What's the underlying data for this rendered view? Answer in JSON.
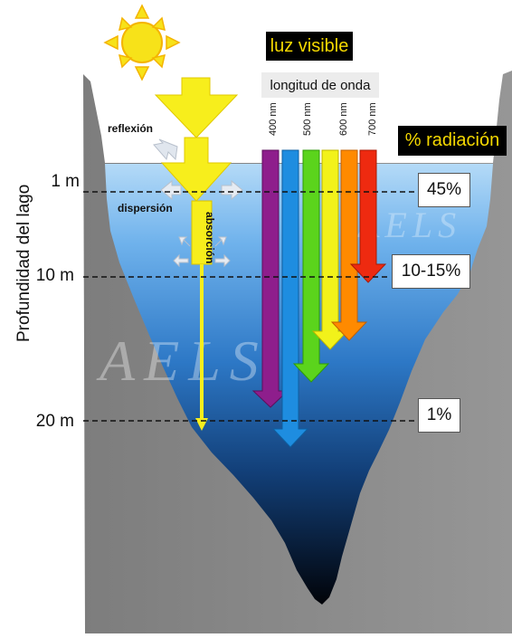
{
  "labels": {
    "visible_light": "luz visible",
    "wavelength": "longitud de onda",
    "radiation": "% radiación",
    "reflection": "reflexión",
    "scattering": "dispersión",
    "absorption": "absorción",
    "depth_axis": "Profundidad del lago",
    "watermark": "AELS"
  },
  "depths": [
    {
      "label": "1 m",
      "percent": "45%"
    },
    {
      "label": "10 m",
      "percent": "10-15%"
    },
    {
      "label": "20 m",
      "percent": "1%"
    }
  ],
  "wavelengths": [
    {
      "label": "400 nm",
      "color": "#8e1e8c"
    },
    {
      "label": "500 nm",
      "color": "#1e8de0"
    },
    {
      "label": "",
      "color": "#5bd41c"
    },
    {
      "label": "600 nm",
      "color": "#f2f21a"
    },
    {
      "label": "",
      "color": "#ff8a00"
    },
    {
      "label": "700 nm",
      "color": "#ee2a10"
    }
  ],
  "colors": {
    "sun": "#f7e219",
    "light_arrow": "#f7ee1c",
    "rock": "#8a8a8a",
    "water_top": "#a9d3f5",
    "water_bottom": "#02060c"
  }
}
